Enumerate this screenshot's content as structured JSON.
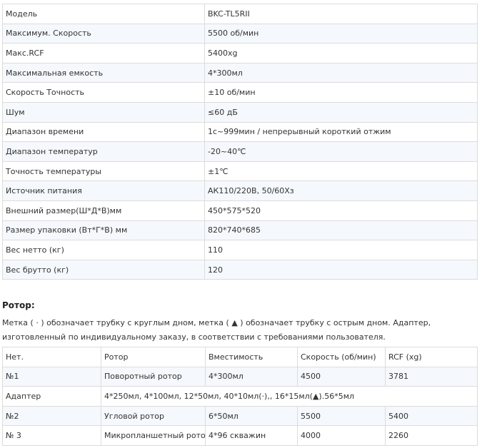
{
  "spec_table": {
    "rows": [
      [
        "Модель",
        "BKC-TL5RII"
      ],
      [
        "Максимум. Скорость",
        "5500 об/мин"
      ],
      [
        "Макс.RCF",
        "5400xg"
      ],
      [
        "Максимальная емкость",
        "4*300мл"
      ],
      [
        "Скорость Точность",
        "±10 об/мин"
      ],
      [
        "Шум",
        "≤60 дБ"
      ],
      [
        "Диапазон времени",
        "1с~999мин / непрерывный короткий отжим"
      ],
      [
        "Диапазон температур",
        "-20~40℃"
      ],
      [
        "Точность температуры",
        "±1℃"
      ],
      [
        "Источник питания",
        "АК110/220В, 50/60Хз"
      ],
      [
        "Внешний размер(Ш*Д*В)мм",
        "450*575*520"
      ],
      [
        "Размер упаковки (Вт*Г*В) мм",
        "820*740*685"
      ],
      [
        "Вес нетто (кг)",
        "110"
      ],
      [
        "Вес брутто (кг)",
        "120"
      ]
    ]
  },
  "rotor_section": {
    "heading": "Ротор:",
    "description": "Метка ( · ) обозначает трубку с круглым дном, метка ( ▲ ) обозначает трубку с острым дном. Адаптер, изготовленный по индивидуальному заказу, в соответствии с требованиями пользователя.",
    "table": {
      "headers": [
        "Нет.",
        "Ротор",
        "Вместимость",
        "Скорость (об/мин)",
        "RCF (xg)"
      ],
      "rows": [
        [
          "№1",
          "Поворотный ротор",
          "4*300мл",
          "4500",
          "3781"
        ],
        [
          "Адаптер",
          "4*250мл, 4*100мл, 12*50мл, 40*10мл(·),,  16*15мл(▲).56*5мл"
        ],
        [
          "№2",
          "Угловой ротор",
          "6*50мл",
          "5500",
          "5400"
        ],
        [
          "№ 3",
          "Микропланшетный ротор",
          "4*96 скважин",
          "4000",
          "2260"
        ]
      ]
    }
  }
}
